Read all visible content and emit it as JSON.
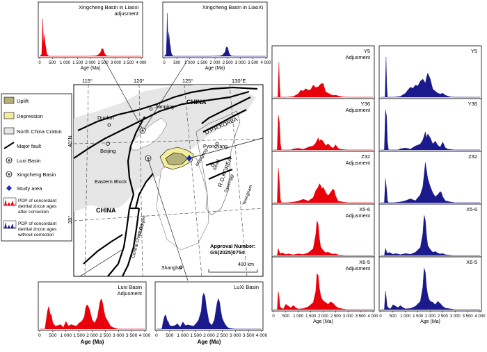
{
  "legend": {
    "items": [
      {
        "key": "uplift",
        "label": "Uplift",
        "swatch": "#b6b07a"
      },
      {
        "key": "depression",
        "label": "Depression",
        "swatch": "#f3ee9b"
      },
      {
        "key": "ncc",
        "label": "North China Craton",
        "swatch": "#e6e6e6"
      },
      {
        "key": "fault",
        "label": "Major fault"
      },
      {
        "key": "luxi",
        "label": "Luxi Basin"
      },
      {
        "key": "xingcheng",
        "label": "Xingcheng Basin"
      },
      {
        "key": "study",
        "label": "Study area"
      },
      {
        "key": "pdp_after",
        "label": "PDP of concordant detrital zircon ages after correction",
        "lines": [
          "PDP of concordant",
          "detrital zircon ages",
          "after correction"
        ]
      },
      {
        "key": "pdp_without",
        "label": "PDP of concordant detrital zircon ages without correction",
        "lines": [
          "PDP of concordant",
          "detrital zircon ages",
          "without correction"
        ]
      }
    ]
  },
  "colors": {
    "adjusted": "#e8000b",
    "raw": "#1a1a8c",
    "craton": "#e6e6e6",
    "uplift": "#b6b07a",
    "depression": "#f3ee9b",
    "study": "#1d2fb4"
  },
  "map": {
    "lon_ticks": [
      "115°",
      "120°",
      "125°",
      "130°E"
    ],
    "lat_ticks": [
      "40°N",
      "35°"
    ],
    "labels": {
      "duolun": "Duolun",
      "jianping": "Jianping",
      "china_top": "CHINA",
      "dprk": "D.P.R.KOREA",
      "pyongyang": "Pyongyang",
      "beijing": "Beijing",
      "imjingang": "Imjingang",
      "seoul": "Seoul",
      "rokorea": "R.O.KOREA",
      "gyeonggi": "Gyeonggi",
      "yeongnam": "Yeongnam",
      "eastern_block": "Eastern Block",
      "china_main": "CHINA",
      "orogen": "Central China Orogen",
      "sulu": "(Sulu)",
      "shanghai": "Shanghai",
      "approval_line1": "Approval Number:",
      "approval_line2": "GS(2025)0754",
      "scale": "400 km"
    }
  },
  "axis": {
    "x_ticks": [
      "0",
      "500",
      "1 000",
      "1 500",
      "2 000",
      "2 500",
      "3 000",
      "3 500",
      "4 000"
    ],
    "x_label": "Age (Ma)"
  },
  "chart_data": [
    {
      "type": "area",
      "id": "xingcheng_adj",
      "title": "Xingcheng Basin in Liaoxi adjusment",
      "title_lines": [
        "Xingcheng Basin in Liaoxi",
        "adjusment"
      ],
      "color": "adjusted",
      "xlim": [
        0,
        4000
      ],
      "x": [
        0,
        80,
        100,
        120,
        140,
        160,
        180,
        200,
        220,
        240,
        260,
        280,
        300,
        350,
        400,
        1000,
        1500,
        1800,
        2000,
        2200,
        2300,
        2400,
        2450,
        2500,
        2550,
        2600,
        2650,
        2800,
        3000,
        4000
      ],
      "y": [
        0,
        0.05,
        0.4,
        0.95,
        0.6,
        0.3,
        0.55,
        0.45,
        0.3,
        0.25,
        0.15,
        0.08,
        0.04,
        0.01,
        0,
        0,
        0,
        0,
        0.005,
        0.01,
        0.03,
        0.1,
        0.2,
        0.18,
        0.08,
        0.03,
        0.01,
        0,
        0,
        0
      ]
    },
    {
      "type": "area",
      "id": "xingcheng_raw",
      "title": "Xingcheng Basin in LiaoXi",
      "title_lines": [
        "Xingcheng Basin in LiaoXi"
      ],
      "color": "raw",
      "xlim": [
        0,
        4000
      ],
      "x": [
        0,
        80,
        100,
        120,
        140,
        160,
        180,
        200,
        220,
        240,
        260,
        280,
        300,
        350,
        400,
        1000,
        1500,
        1800,
        2000,
        2200,
        2300,
        2400,
        2450,
        2500,
        2550,
        2600,
        2650,
        2800,
        3000,
        4000
      ],
      "y": [
        0,
        0.05,
        0.45,
        1,
        0.6,
        0.3,
        0.55,
        0.45,
        0.3,
        0.25,
        0.15,
        0.08,
        0.04,
        0.01,
        0,
        0,
        0,
        0,
        0.005,
        0.01,
        0.03,
        0.1,
        0.22,
        0.2,
        0.08,
        0.03,
        0.01,
        0,
        0,
        0
      ]
    },
    {
      "type": "area",
      "id": "y5_adj",
      "title": "Y5 Adjusment",
      "title_lines": [
        "Y5",
        "Adjusment"
      ],
      "color": "adjusted",
      "xlim": [
        0,
        4000
      ],
      "x": [
        0,
        180,
        220,
        250,
        280,
        320,
        360,
        500,
        800,
        1000,
        1100,
        1200,
        1300,
        1400,
        1500,
        1600,
        1700,
        1800,
        1900,
        2000,
        2100,
        2200,
        2300,
        2400,
        2500,
        2600,
        2700,
        2800,
        3000,
        3200,
        4000
      ],
      "y": [
        0,
        0,
        1,
        0.3,
        0,
        0,
        0,
        0,
        0.02,
        0.1,
        0.2,
        0.18,
        0.25,
        0.2,
        0.22,
        0.35,
        0.28,
        0.3,
        0.38,
        0.4,
        0.15,
        0.12,
        0.08,
        0.05,
        0.06,
        0.04,
        0.02,
        0.01,
        0,
        0,
        0
      ]
    },
    {
      "type": "area",
      "id": "y5_raw",
      "title": "Y5",
      "title_lines": [
        "Y5"
      ],
      "color": "raw",
      "xlim": [
        0,
        4000
      ],
      "x": [
        0,
        180,
        220,
        250,
        280,
        320,
        500,
        800,
        1000,
        1100,
        1200,
        1300,
        1400,
        1500,
        1600,
        1700,
        1800,
        1850,
        1900,
        2000,
        2100,
        2200,
        2300,
        2400,
        2500,
        2600,
        2700,
        2800,
        3000,
        3200,
        4000
      ],
      "y": [
        0,
        0,
        1,
        0.3,
        0,
        0,
        0,
        0.02,
        0.1,
        0.18,
        0.25,
        0.22,
        0.3,
        0.28,
        0.4,
        0.45,
        0.35,
        0.5,
        0.6,
        0.45,
        0.2,
        0.15,
        0.1,
        0.08,
        0.1,
        0.05,
        0.03,
        0.01,
        0,
        0,
        0
      ]
    },
    {
      "type": "area",
      "id": "y36_adj",
      "title": "Y36 Adjusment",
      "title_lines": [
        "Y36",
        "Adjusment"
      ],
      "color": "adjusted",
      "xlim": [
        0,
        4000
      ],
      "x": [
        0,
        150,
        200,
        240,
        280,
        320,
        500,
        700,
        800,
        1000,
        1200,
        1400,
        1500,
        1600,
        1700,
        1800,
        1850,
        1900,
        1950,
        2000,
        2100,
        2200,
        2300,
        2400,
        2500,
        2600,
        2700,
        3000,
        4000
      ],
      "y": [
        0,
        0,
        1,
        0.8,
        0.2,
        0,
        0,
        0,
        0.03,
        0.05,
        0.02,
        0.08,
        0.1,
        0.12,
        0.2,
        0.35,
        0.25,
        0.3,
        0.28,
        0.25,
        0.12,
        0.18,
        0.1,
        0.05,
        0.15,
        0.05,
        0.02,
        0,
        0
      ]
    },
    {
      "type": "area",
      "id": "y36_raw",
      "title": "Y36",
      "title_lines": [
        "Y36"
      ],
      "color": "raw",
      "xlim": [
        0,
        4000
      ],
      "x": [
        0,
        150,
        200,
        240,
        280,
        320,
        500,
        700,
        800,
        1000,
        1200,
        1400,
        1500,
        1600,
        1700,
        1800,
        1850,
        1900,
        1950,
        2000,
        2100,
        2200,
        2300,
        2400,
        2500,
        2600,
        2700,
        3000,
        4000
      ],
      "y": [
        0,
        0,
        1,
        0.85,
        0.2,
        0,
        0,
        0,
        0.03,
        0.05,
        0.02,
        0.1,
        0.12,
        0.15,
        0.25,
        0.45,
        0.3,
        0.4,
        0.35,
        0.3,
        0.15,
        0.22,
        0.12,
        0.07,
        0.2,
        0.06,
        0.02,
        0,
        0
      ]
    },
    {
      "type": "area",
      "id": "z32_adj",
      "title": "Z32 Adjusment",
      "title_lines": [
        "Z32",
        "Adjusment"
      ],
      "color": "adjusted",
      "xlim": [
        0,
        4000
      ],
      "x": [
        0,
        150,
        200,
        240,
        280,
        320,
        500,
        800,
        1000,
        1200,
        1400,
        1600,
        1700,
        1800,
        1850,
        1900,
        1950,
        2000,
        2100,
        2200,
        2300,
        2400,
        2450,
        2500,
        2600,
        2800,
        3000,
        4000
      ],
      "y": [
        0,
        0,
        1,
        0.6,
        0.1,
        0,
        0,
        0.02,
        0.05,
        0.1,
        0.05,
        0.15,
        0.35,
        0.45,
        0.55,
        0.5,
        0.4,
        0.45,
        0.3,
        0.2,
        0.3,
        0.4,
        0.35,
        0.2,
        0.05,
        0.02,
        0,
        0
      ]
    },
    {
      "type": "area",
      "id": "z32_raw",
      "title": "Z32",
      "title_lines": [
        "Z32"
      ],
      "color": "raw",
      "xlim": [
        0,
        4000
      ],
      "x": [
        0,
        150,
        200,
        240,
        280,
        320,
        500,
        800,
        1000,
        1200,
        1400,
        1600,
        1700,
        1750,
        1800,
        1850,
        1900,
        1950,
        2000,
        2100,
        2200,
        2300,
        2400,
        2450,
        2500,
        2600,
        2800,
        3000,
        4000
      ],
      "y": [
        0,
        0,
        0.6,
        0.35,
        0.05,
        0,
        0,
        0.02,
        0.05,
        0.1,
        0.05,
        0.2,
        0.4,
        0.7,
        1,
        0.8,
        0.6,
        0.5,
        0.4,
        0.25,
        0.15,
        0.2,
        0.28,
        0.25,
        0.15,
        0.05,
        0.02,
        0,
        0
      ]
    },
    {
      "type": "area",
      "id": "x56_adj",
      "title": "X5-6 Adjusment",
      "title_lines": [
        "X5-6",
        "Adjusment"
      ],
      "color": "adjusted",
      "xlim": [
        0,
        4000
      ],
      "x": [
        0,
        150,
        200,
        240,
        280,
        350,
        500,
        600,
        800,
        1000,
        1200,
        1400,
        1600,
        1700,
        1750,
        1800,
        1850,
        1900,
        2000,
        2100,
        2200,
        2300,
        2400,
        2500,
        2600,
        2800,
        3000,
        4000
      ],
      "y": [
        0,
        0,
        0.2,
        0.1,
        0.05,
        0.08,
        0.03,
        0.05,
        0.02,
        0.05,
        0.03,
        0.08,
        0.2,
        0.6,
        1,
        0.9,
        0.5,
        0.25,
        0.15,
        0.08,
        0.1,
        0.06,
        0.04,
        0.05,
        0.02,
        0.01,
        0,
        0
      ]
    },
    {
      "type": "area",
      "id": "x56_raw",
      "title": "X5-6",
      "title_lines": [
        "X5-6"
      ],
      "color": "raw",
      "xlim": [
        0,
        4000
      ],
      "x": [
        0,
        150,
        200,
        240,
        280,
        350,
        500,
        600,
        800,
        1000,
        1200,
        1400,
        1600,
        1700,
        1750,
        1800,
        1850,
        1900,
        2000,
        2100,
        2200,
        2300,
        2400,
        2500,
        2600,
        2800,
        3000,
        4000
      ],
      "y": [
        0,
        0,
        0.18,
        0.1,
        0.05,
        0.08,
        0.03,
        0.05,
        0.02,
        0.05,
        0.03,
        0.08,
        0.2,
        0.55,
        1,
        0.88,
        0.5,
        0.25,
        0.15,
        0.08,
        0.1,
        0.06,
        0.04,
        0.05,
        0.02,
        0.01,
        0,
        0
      ]
    },
    {
      "type": "area",
      "id": "x65_adj",
      "title": "X6-5 Adjusment",
      "title_lines": [
        "X6-5",
        "Adjusment"
      ],
      "color": "adjusted",
      "xlim": [
        0,
        4000
      ],
      "x": [
        0,
        150,
        200,
        230,
        260,
        300,
        400,
        500,
        700,
        800,
        900,
        1000,
        1200,
        1400,
        1600,
        1700,
        1750,
        1800,
        1850,
        1900,
        1950,
        2000,
        2100,
        2200,
        2300,
        2400,
        2500,
        2600,
        2800,
        3000,
        4000
      ],
      "y": [
        0,
        0,
        0.5,
        0.35,
        0.1,
        0.05,
        0.02,
        0.15,
        0.05,
        0.12,
        0.05,
        0.02,
        0.03,
        0.08,
        0.2,
        0.5,
        1,
        0.95,
        0.6,
        0.4,
        0.3,
        0.25,
        0.2,
        0.15,
        0.22,
        0.18,
        0.1,
        0.05,
        0.02,
        0,
        0
      ]
    },
    {
      "type": "area",
      "id": "x65_raw",
      "title": "X6-5",
      "title_lines": [
        "X6-5"
      ],
      "color": "raw",
      "xlim": [
        0,
        4000
      ],
      "x": [
        0,
        150,
        200,
        230,
        260,
        300,
        400,
        500,
        700,
        800,
        900,
        1000,
        1200,
        1400,
        1600,
        1700,
        1750,
        1800,
        1850,
        1900,
        1950,
        2000,
        2100,
        2200,
        2300,
        2400,
        2500,
        2600,
        2800,
        3000,
        4000
      ],
      "y": [
        0,
        0,
        0.45,
        0.3,
        0.1,
        0.05,
        0.02,
        0.12,
        0.05,
        0.1,
        0.05,
        0.02,
        0.03,
        0.08,
        0.2,
        0.55,
        1,
        0.9,
        0.55,
        0.35,
        0.25,
        0.2,
        0.18,
        0.12,
        0.2,
        0.15,
        0.08,
        0.04,
        0.02,
        0,
        0
      ]
    },
    {
      "type": "area",
      "id": "luxi_adj",
      "title": "Luxi Basin Adjusment",
      "title_lines": [
        "Luxi Basin",
        "Adjusment"
      ],
      "color": "adjusted",
      "xlim": [
        0,
        4000
      ],
      "x": [
        0,
        200,
        250,
        300,
        350,
        400,
        450,
        500,
        600,
        700,
        800,
        900,
        1000,
        1100,
        1200,
        1300,
        1400,
        1500,
        1600,
        1700,
        1750,
        1800,
        1850,
        1900,
        2000,
        2100,
        2200,
        2300,
        2350,
        2400,
        2450,
        2500,
        2600,
        2700,
        2800,
        3000,
        4000
      ],
      "y": [
        0,
        0,
        0.3,
        0.6,
        0.75,
        0.5,
        0.45,
        0.2,
        0.1,
        0.12,
        0.15,
        0.05,
        0.25,
        0.1,
        0.15,
        0.12,
        0.1,
        0.2,
        0.25,
        0.4,
        0.7,
        0.8,
        0.75,
        0.65,
        0.3,
        0.2,
        0.4,
        0.9,
        1,
        0.85,
        0.6,
        0.4,
        0.25,
        0.1,
        0.05,
        0,
        0
      ]
    },
    {
      "type": "area",
      "id": "luxi_raw",
      "title": "LuXi Basin",
      "title_lines": [
        "LuXi Basin"
      ],
      "color": "raw",
      "xlim": [
        0,
        4000
      ],
      "x": [
        0,
        200,
        250,
        300,
        350,
        400,
        450,
        500,
        600,
        700,
        800,
        900,
        1000,
        1100,
        1200,
        1300,
        1400,
        1500,
        1600,
        1700,
        1750,
        1800,
        1850,
        1900,
        2000,
        2100,
        2200,
        2300,
        2350,
        2400,
        2450,
        2500,
        2600,
        2700,
        2800,
        3000,
        4000
      ],
      "y": [
        0,
        0,
        0.2,
        0.35,
        0.4,
        0.25,
        0.2,
        0.1,
        0.08,
        0.1,
        0.15,
        0.05,
        0.2,
        0.1,
        0.12,
        0.1,
        0.08,
        0.15,
        0.25,
        0.5,
        0.9,
        1,
        0.9,
        0.6,
        0.2,
        0.1,
        0.25,
        0.7,
        0.85,
        0.75,
        0.5,
        0.3,
        0.15,
        0.05,
        0.02,
        0,
        0
      ]
    }
  ]
}
